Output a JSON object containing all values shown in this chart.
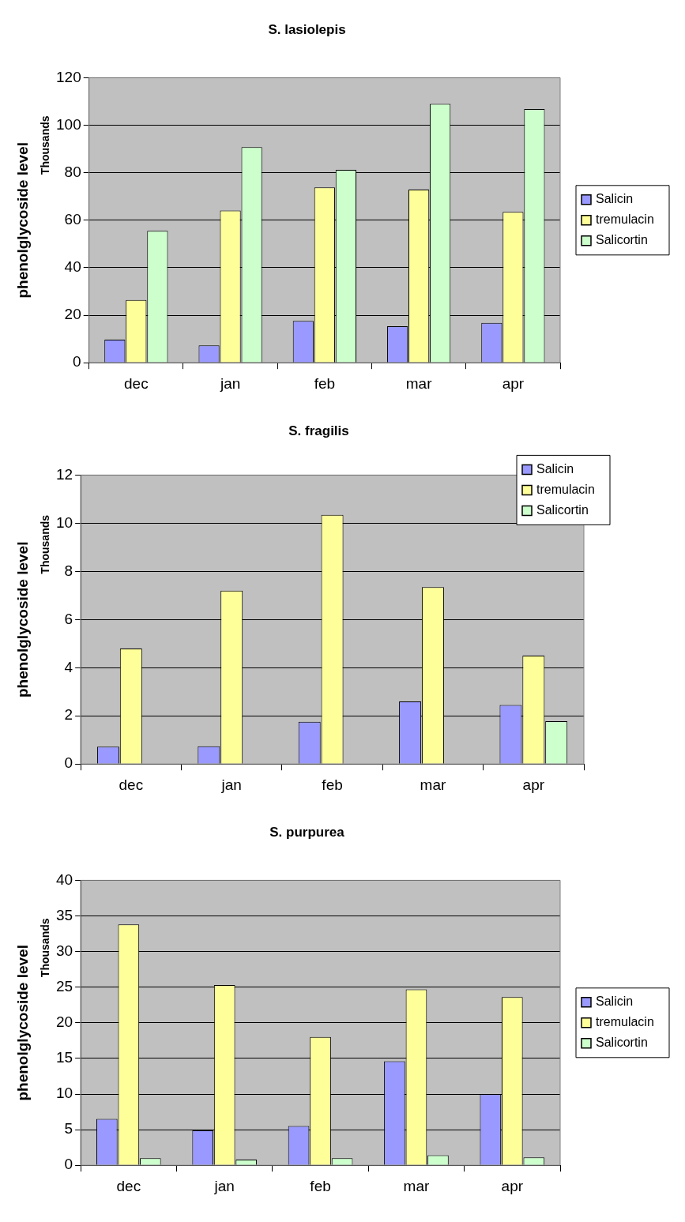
{
  "chart_data": [
    {
      "type": "bar",
      "title": "S. lasiolepis",
      "ylabel": "phenolglycoside level",
      "annotations": [
        "Thousands"
      ],
      "categories": [
        "dec",
        "jan",
        "feb",
        "mar",
        "apr"
      ],
      "ylim": [
        0,
        120
      ],
      "yticks": [
        0,
        20,
        40,
        60,
        80,
        100,
        120
      ],
      "grid": "y",
      "legend": "right",
      "series": [
        {
          "name": "Salicin",
          "color": "#9999ff",
          "values": [
            9.7,
            7.3,
            17.6,
            15.4,
            16.8
          ]
        },
        {
          "name": "tremulacin",
          "color": "#ffff99",
          "values": [
            26.4,
            64.1,
            73.8,
            72.9,
            63.5
          ]
        },
        {
          "name": "Salicortin",
          "color": "#ccffcc",
          "values": [
            55.5,
            90.8,
            81.2,
            109,
            106.8
          ]
        }
      ]
    },
    {
      "type": "bar",
      "title": "S. fragilis",
      "ylabel": "phenolglycoside level",
      "annotations": [
        "Thousands"
      ],
      "categories": [
        "dec",
        "jan",
        "feb",
        "mar",
        "apr"
      ],
      "ylim": [
        0,
        12
      ],
      "yticks": [
        0,
        2,
        4,
        6,
        8,
        10,
        12
      ],
      "grid": "y",
      "legend": "top right",
      "series": [
        {
          "name": "Salicin",
          "color": "#9999ff",
          "values": [
            0.72,
            0.74,
            1.75,
            2.6,
            2.45
          ]
        },
        {
          "name": "tremulacin",
          "color": "#ffff99",
          "values": [
            4.8,
            7.2,
            10.35,
            7.35,
            4.5
          ]
        },
        {
          "name": "Salicortin",
          "color": "#ccffcc",
          "values": [
            null,
            null,
            null,
            null,
            1.78
          ]
        }
      ]
    },
    {
      "type": "bar",
      "title": "S. purpurea",
      "ylabel": "phenolglycoside level",
      "annotations": [
        "Thousands"
      ],
      "categories": [
        "dec",
        "jan",
        "feb",
        "mar",
        "apr"
      ],
      "ylim": [
        0,
        40
      ],
      "yticks": [
        0,
        5,
        10,
        15,
        20,
        25,
        30,
        35,
        40
      ],
      "grid": "y",
      "legend": "right",
      "series": [
        {
          "name": "Salicin",
          "color": "#9999ff",
          "values": [
            6.5,
            4.9,
            5.5,
            14.6,
            10
          ]
        },
        {
          "name": "tremulacin",
          "color": "#ffff99",
          "values": [
            33.8,
            25.3,
            18,
            24.7,
            23.6
          ]
        },
        {
          "name": "Salicortin",
          "color": "#ccffcc",
          "values": [
            1.0,
            0.8,
            1.0,
            1.4,
            1.1
          ]
        }
      ]
    }
  ]
}
